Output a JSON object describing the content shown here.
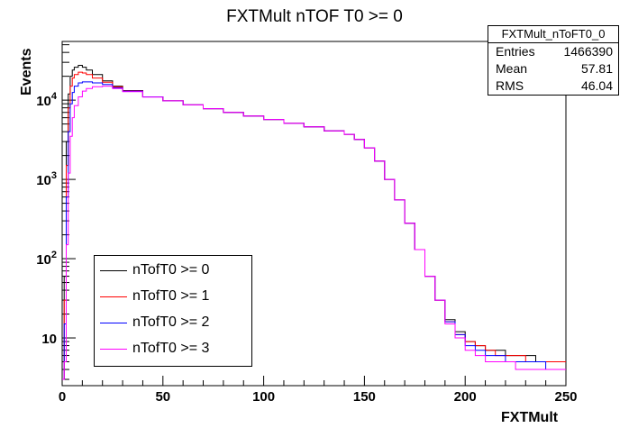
{
  "chart_data": {
    "type": "line",
    "title": "FXTMult nTOF T0 >= 0",
    "xlabel": "FXTMult",
    "ylabel": "Events",
    "xlim": [
      0,
      250
    ],
    "ylim": [
      2.5,
      55000
    ],
    "y_scale": "log",
    "grid": false,
    "legend_position": "bottom-left",
    "x_ticks": [
      0,
      50,
      100,
      150,
      200,
      250
    ],
    "y_tick_labels": [
      {
        "value": 10,
        "label": "10"
      },
      {
        "value": 100,
        "label": "10^2"
      },
      {
        "value": 1000,
        "label": "10^3"
      },
      {
        "value": 10000,
        "label": "10^4"
      }
    ],
    "x": [
      0,
      1,
      2,
      3,
      4,
      5,
      6,
      8,
      10,
      12,
      15,
      20,
      25,
      30,
      40,
      50,
      60,
      70,
      80,
      90,
      100,
      110,
      120,
      130,
      140,
      145,
      150,
      155,
      160,
      165,
      170,
      175,
      180,
      185,
      190,
      195,
      200,
      205,
      210,
      215,
      220,
      225,
      230,
      235,
      240,
      245,
      250
    ],
    "series": [
      {
        "name": "nTofT0 >= 0",
        "color": "#000000",
        "values": [
          3,
          60,
          3000,
          12000,
          20000,
          24000,
          26000,
          27500,
          26000,
          24000,
          21000,
          17500,
          15000,
          13200,
          11000,
          9800,
          8700,
          7800,
          7000,
          6300,
          5700,
          5100,
          4600,
          4100,
          3700,
          3200,
          2500,
          1700,
          1000,
          550,
          280,
          130,
          60,
          30,
          17,
          12,
          9,
          8,
          7,
          7,
          6,
          6,
          6,
          5,
          5,
          5,
          5
        ]
      },
      {
        "name": "nTofT0 >= 1",
        "color": "#ff0000",
        "values": [
          3,
          30,
          1500,
          8000,
          15000,
          19000,
          21000,
          22500,
          22000,
          21000,
          19000,
          16800,
          14700,
          13100,
          11000,
          9800,
          8700,
          7800,
          7000,
          6300,
          5700,
          5100,
          4600,
          4100,
          3700,
          3200,
          2500,
          1700,
          1000,
          550,
          280,
          130,
          60,
          30,
          16,
          11,
          9,
          8,
          7,
          6,
          6,
          6,
          5,
          5,
          5,
          5,
          5
        ]
      },
      {
        "name": "nTofT0 >= 2",
        "color": "#0000ff",
        "values": [
          3,
          15,
          600,
          4000,
          9000,
          12500,
          15000,
          16500,
          17000,
          17000,
          16500,
          15800,
          14300,
          13000,
          11000,
          9800,
          8700,
          7800,
          7000,
          6300,
          5700,
          5100,
          4600,
          4100,
          3700,
          3200,
          2500,
          1700,
          1000,
          550,
          280,
          130,
          60,
          30,
          16,
          11,
          8,
          7,
          6,
          6,
          5,
          5,
          5,
          5,
          4,
          4,
          4
        ]
      },
      {
        "name": "nTofT0 >= 3",
        "color": "#ff00ff",
        "values": [
          3,
          5,
          150,
          1200,
          3500,
          6000,
          8500,
          11000,
          13000,
          14000,
          14800,
          15000,
          14000,
          12800,
          10900,
          9800,
          8700,
          7800,
          7000,
          6300,
          5700,
          5100,
          4600,
          4100,
          3700,
          3200,
          2500,
          1700,
          1000,
          550,
          280,
          130,
          60,
          30,
          15,
          10,
          7,
          6,
          5,
          5,
          5,
          4,
          4,
          4,
          4,
          4,
          4
        ]
      }
    ]
  },
  "stats_box": {
    "name": "FXTMult_nToFT0_0",
    "rows": [
      {
        "label": "Entries",
        "value": "1466390"
      },
      {
        "label": "Mean",
        "value": "57.81"
      },
      {
        "label": "RMS",
        "value": "46.04"
      }
    ]
  }
}
